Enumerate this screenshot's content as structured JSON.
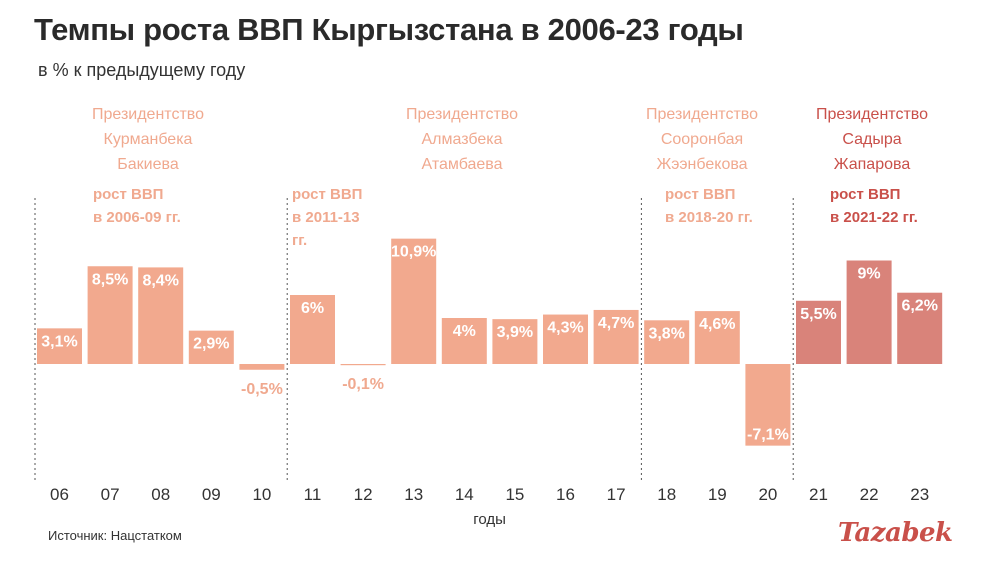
{
  "header": {
    "title": "Темпы роста ВВП Кыргызстана в 2006-23 годы",
    "subtitle": "в % к предыдущему году"
  },
  "footer": {
    "source": "Источник: Нацстатком",
    "logo": "Tazabek"
  },
  "colors": {
    "bar_main": "#f2a98e",
    "bar_accent": "#d9837a",
    "label_main": "#f0a98f",
    "label_accent": "#c9504a",
    "axis_text": "#333333"
  },
  "chart_data": {
    "type": "bar",
    "title": "Темпы роста ВВП Кыргызстана в 2006-23 годы",
    "subtitle": "в % к предыдущему году",
    "xlabel": "годы",
    "ylabel": "",
    "ylim": [
      -8,
      12.5
    ],
    "grid": false,
    "categories": [
      "06",
      "07",
      "08",
      "09",
      "10",
      "11",
      "12",
      "13",
      "14",
      "15",
      "16",
      "17",
      "18",
      "19",
      "20",
      "21",
      "22",
      "23"
    ],
    "values": [
      3.1,
      8.5,
      8.4,
      2.9,
      -0.5,
      6.0,
      -0.1,
      10.9,
      4.0,
      3.9,
      4.3,
      4.7,
      3.8,
      4.6,
      -7.1,
      5.5,
      9.0,
      6.2
    ],
    "data_labels": [
      "3,1%",
      "8,5%",
      "8,4%",
      "2,9%",
      "-0,5%",
      "6%",
      "-0,1%",
      "10,9%",
      "4%",
      "3,9%",
      "4,3%",
      "4,7%",
      "3,8%",
      "4,6%",
      "-7,1%",
      "5,5%",
      "9%",
      "6,2%"
    ],
    "highlight_from_index": 15,
    "annotations": [
      {
        "presidency": [
          "Президентство",
          "Курманбека",
          "Бакиева"
        ],
        "growth": [
          "рост ВВП",
          "в 2006-09 гг."
        ],
        "start_index": 0,
        "end_index": 4
      },
      {
        "presidency": [
          "Президентство",
          "Алмазбека",
          "Атамбаева"
        ],
        "growth": [
          "рост ВВП",
          "в 2011-13",
          "гг."
        ],
        "start_index": 5,
        "end_index": 11
      },
      {
        "presidency": [
          "Президентство",
          "Сооронбая",
          "Жээнбекова"
        ],
        "growth": [
          "рост ВВП",
          "в 2018-20 гг."
        ],
        "start_index": 12,
        "end_index": 14
      },
      {
        "presidency": [
          "Президентство",
          "Садыра",
          "Жапарова"
        ],
        "growth": [
          "рост ВВП",
          "в 2021-22 гг."
        ],
        "start_index": 15,
        "end_index": 17,
        "accent": true
      }
    ]
  }
}
